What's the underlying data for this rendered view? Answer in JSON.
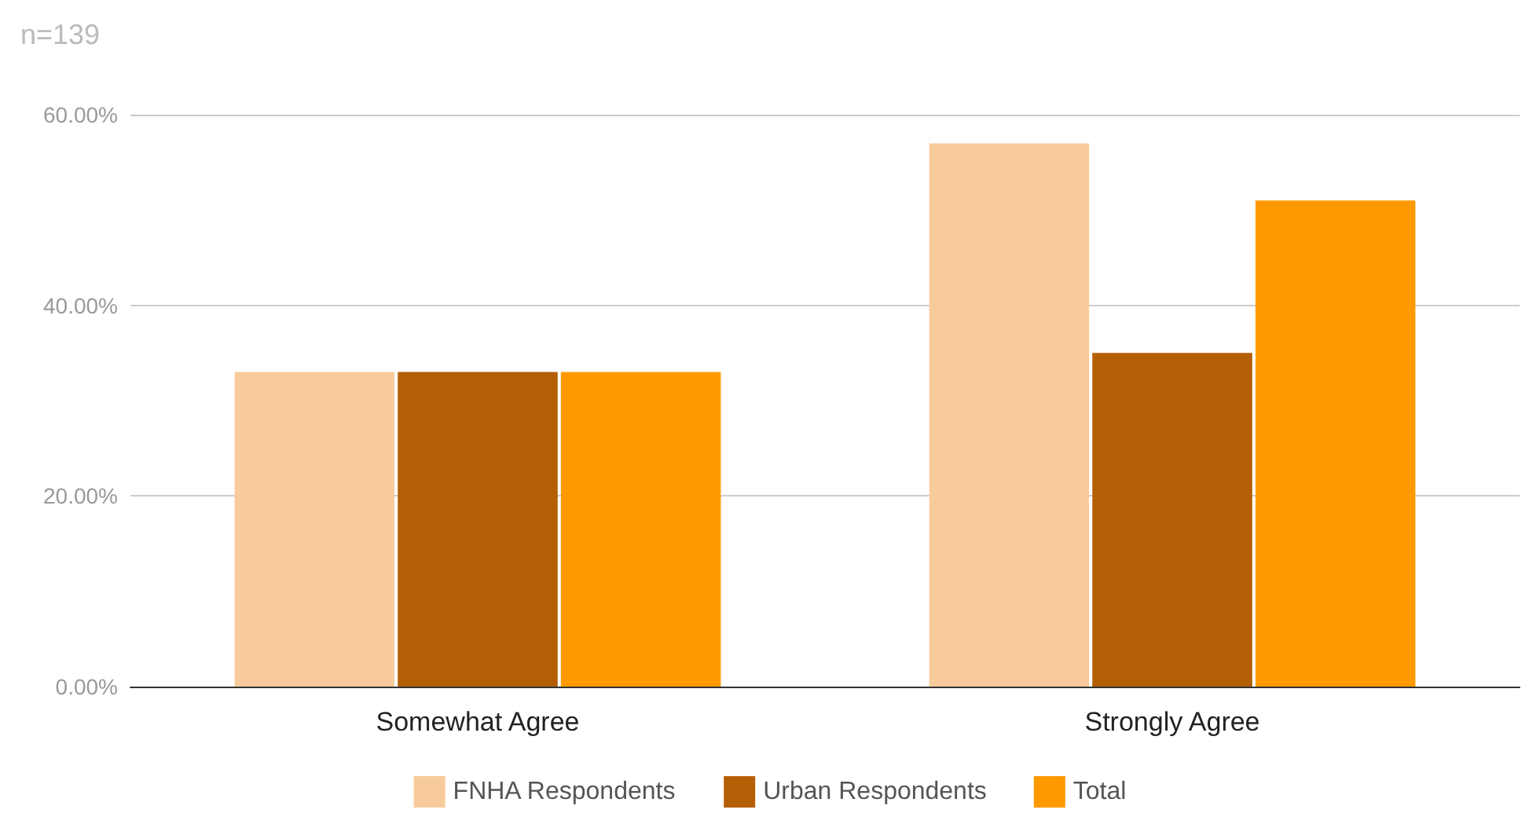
{
  "chart_data": {
    "type": "bar",
    "title": "n=139",
    "categories": [
      "Somewhat Agree",
      "Strongly Agree"
    ],
    "series": [
      {
        "name": "FNHA Respondents",
        "color": "#f8cb9c",
        "values": [
          33,
          57
        ]
      },
      {
        "name": "Urban Respondents",
        "color": "#b45f06",
        "values": [
          33,
          35
        ]
      },
      {
        "name": "Total",
        "color": "#ff9900",
        "values": [
          33,
          51
        ]
      }
    ],
    "ylim": [
      0,
      60
    ],
    "yticks": [
      {
        "value": 0,
        "label": "0.00%"
      },
      {
        "value": 20,
        "label": "20.00%"
      },
      {
        "value": 40,
        "label": "40.00%"
      },
      {
        "value": 60,
        "label": "60.00%"
      }
    ],
    "grid": "y",
    "legend": "bottom"
  }
}
